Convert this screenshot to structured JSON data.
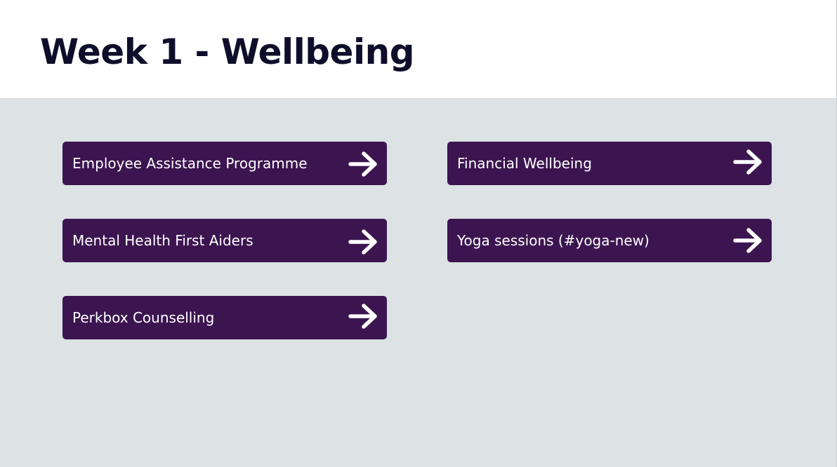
{
  "page": {
    "title": "Week 1 - Wellbeing"
  },
  "links": [
    {
      "label": "Employee Assistance Programme",
      "icon": "arrow-right-icon"
    },
    {
      "label": "Financial Wellbeing",
      "icon": "arrow-right-icon"
    },
    {
      "label": "Mental Health First Aiders",
      "icon": "arrow-right-icon"
    },
    {
      "label": "Yoga sessions (#yoga-new)",
      "icon": "arrow-right-icon"
    },
    {
      "label": "Perkbox Counselling",
      "icon": "arrow-right-icon"
    }
  ],
  "colors": {
    "background": "#dde2e5",
    "header": "#ffffff",
    "title": "#0f0e2a",
    "button": "#3c1550",
    "button_text": "#ffffff"
  }
}
